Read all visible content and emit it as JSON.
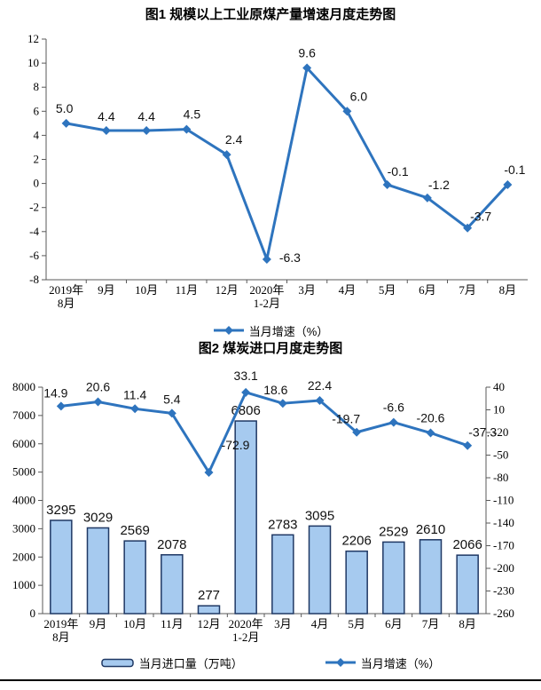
{
  "colors": {
    "line": "#2E74BE",
    "bar_fill": "#A6CAEF",
    "bar_border": "#1F3864",
    "axis": "#595959",
    "text": "#000000"
  },
  "chart1": {
    "title": "图1 规模以上工业原煤产量增速月度走势图",
    "legend_line": "当月增速（%）"
  },
  "chart2": {
    "title": "图2 煤炭进口月度走势图",
    "legend_bar": "当月进口量（万吨）",
    "legend_line": "当月增速（%）"
  },
  "chart_data": [
    {
      "type": "line",
      "title": "图1 规模以上工业原煤产量增速月度走势图",
      "categories": [
        [
          "2019年",
          "8月"
        ],
        "9月",
        "10月",
        "11月",
        "12月",
        [
          "2020年",
          "1-2月"
        ],
        "3月",
        "4月",
        "5月",
        "6月",
        "7月",
        "8月"
      ],
      "series": [
        {
          "name": "当月增速（%）",
          "type": "line",
          "axis": "left",
          "values": [
            5.0,
            4.4,
            4.4,
            4.5,
            2.4,
            -6.3,
            9.6,
            6.0,
            -0.1,
            -1.2,
            -3.7,
            -0.1
          ],
          "labels": [
            "5.0",
            "4.4",
            "4.4",
            "4.5",
            "2.4",
            "-6.3",
            "9.6",
            "6.0",
            "-0.1",
            "-1.2",
            "-3.7",
            "-0.1"
          ]
        }
      ],
      "ylim": [
        -8,
        12
      ],
      "yticks": [
        12,
        10,
        8,
        6,
        4,
        2,
        0,
        -2,
        -4,
        -6,
        -8
      ],
      "grid": false,
      "legend_position": "bottom",
      "xlabel": "",
      "ylabel": ""
    },
    {
      "type": "bar",
      "title": "图2 煤炭进口月度走势图",
      "categories": [
        [
          "2019年",
          "8月"
        ],
        "9月",
        "10月",
        "11月",
        "12月",
        [
          "2020年",
          "1-2月"
        ],
        "3月",
        "4月",
        "5月",
        "6月",
        "7月",
        "8月"
      ],
      "series": [
        {
          "name": "当月进口量（万吨）",
          "type": "bar",
          "axis": "left",
          "values": [
            3295,
            3029,
            2569,
            2078,
            277,
            6806,
            2783,
            3095,
            2206,
            2529,
            2610,
            2066
          ],
          "labels": [
            "3295",
            "3029",
            "2569",
            "2078",
            "277",
            "6806",
            "2783",
            "3095",
            "2206",
            "2529",
            "2610",
            "2066"
          ]
        },
        {
          "name": "当月增速（%）",
          "type": "line",
          "axis": "right",
          "values": [
            14.9,
            20.6,
            11.4,
            5.4,
            -72.9,
            33.1,
            18.6,
            22.4,
            -19.7,
            -6.6,
            -20.6,
            -37.3
          ],
          "labels": [
            "14.9",
            "20.6",
            "11.4",
            "5.4",
            "-72.9",
            "33.1",
            "18.6",
            "22.4",
            "-19.7",
            "-6.6",
            "-20.6",
            "-37.3"
          ]
        }
      ],
      "ylim": [
        0,
        8000
      ],
      "yticks": [
        8000,
        7000,
        6000,
        5000,
        4000,
        3000,
        2000,
        1000,
        0
      ],
      "y2lim": [
        -260,
        40
      ],
      "y2ticks": [
        40,
        10,
        -20,
        -50,
        -80,
        -110,
        -140,
        -170,
        -200,
        -230,
        -260
      ],
      "grid": false,
      "legend_position": "bottom",
      "xlabel": "",
      "ylabel": ""
    }
  ]
}
